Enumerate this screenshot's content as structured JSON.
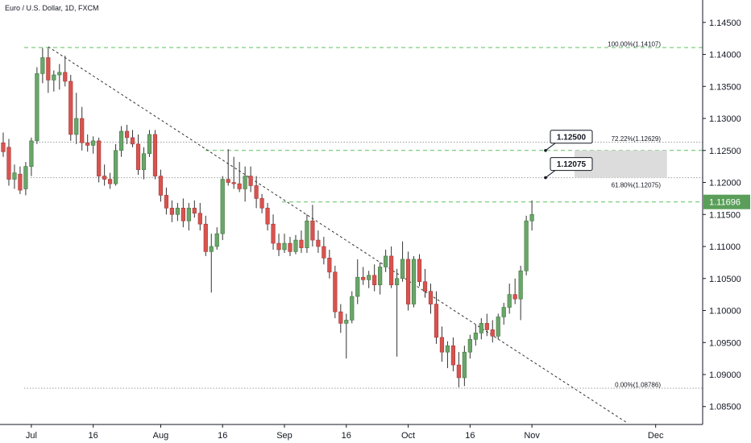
{
  "header": {
    "title": "Euro / U.S. Dollar, 1D, FXCM"
  },
  "colors": {
    "up": "#6ba56b",
    "down": "#d9534f",
    "up_border": "#3d7a3d",
    "down_border": "#a33a36",
    "fib_line": "#5fbf5f",
    "dotted_line": "#9e9e9e",
    "trendline": "#333333",
    "zone": "#dcdcdc",
    "price_badge": "#5a9e5a"
  },
  "chart_data": {
    "type": "candlestick",
    "y_range": [
      1.0822,
      1.1485
    ],
    "y_ticks": [
      "1.14500",
      "1.14000",
      "1.13500",
      "1.13000",
      "1.12500",
      "1.12000",
      "1.11500",
      "1.11000",
      "1.10500",
      "1.10000",
      "1.09500",
      "1.09000",
      "1.08500"
    ],
    "x_ticks": [
      {
        "label": "Jul",
        "index": 5
      },
      {
        "label": "16",
        "index": 16
      },
      {
        "label": "Aug",
        "index": 28
      },
      {
        "label": "16",
        "index": 39
      },
      {
        "label": "Sep",
        "index": 50
      },
      {
        "label": "16",
        "index": 61
      },
      {
        "label": "Oct",
        "index": 72
      },
      {
        "label": "16",
        "index": 83
      },
      {
        "label": "Nov",
        "index": 94
      },
      {
        "label": "Dec",
        "index": 116
      }
    ],
    "candles": [
      [
        1.1262,
        1.1278,
        1.124,
        1.1248
      ],
      [
        1.1255,
        1.1268,
        1.1195,
        1.1205
      ],
      [
        1.1205,
        1.1228,
        1.119,
        1.1215
      ],
      [
        1.1213,
        1.1225,
        1.1182,
        1.1188
      ],
      [
        1.119,
        1.1232,
        1.118,
        1.1225
      ],
      [
        1.1225,
        1.127,
        1.121,
        1.1265
      ],
      [
        1.1265,
        1.138,
        1.126,
        1.137
      ],
      [
        1.137,
        1.141,
        1.1355,
        1.1395
      ],
      [
        1.1395,
        1.141,
        1.134,
        1.136
      ],
      [
        1.136,
        1.1375,
        1.1342,
        1.1368
      ],
      [
        1.1368,
        1.1385,
        1.1345,
        1.1372
      ],
      [
        1.1372,
        1.1398,
        1.135,
        1.1358
      ],
      [
        1.1358,
        1.1368,
        1.1265,
        1.1275
      ],
      [
        1.1275,
        1.134,
        1.126,
        1.13
      ],
      [
        1.13,
        1.1318,
        1.125,
        1.1262
      ],
      [
        1.1262,
        1.1275,
        1.1248,
        1.1258
      ],
      [
        1.1258,
        1.1272,
        1.1245,
        1.1265
      ],
      [
        1.1265,
        1.127,
        1.12,
        1.121
      ],
      [
        1.121,
        1.1228,
        1.1195,
        1.1205
      ],
      [
        1.1205,
        1.1215,
        1.119,
        1.1198
      ],
      [
        1.1198,
        1.126,
        1.1195,
        1.125
      ],
      [
        1.125,
        1.1288,
        1.124,
        1.128
      ],
      [
        1.128,
        1.129,
        1.126,
        1.127
      ],
      [
        1.127,
        1.1282,
        1.1255,
        1.126
      ],
      [
        1.126,
        1.1275,
        1.1212,
        1.122
      ],
      [
        1.122,
        1.1255,
        1.1205,
        1.1245
      ],
      [
        1.1245,
        1.1282,
        1.124,
        1.1275
      ],
      [
        1.1275,
        1.1282,
        1.1205,
        1.121
      ],
      [
        1.121,
        1.122,
        1.117,
        1.118
      ],
      [
        1.118,
        1.1192,
        1.115,
        1.116
      ],
      [
        1.116,
        1.1172,
        1.1138,
        1.115
      ],
      [
        1.115,
        1.1168,
        1.114,
        1.116
      ],
      [
        1.116,
        1.1175,
        1.113,
        1.114
      ],
      [
        1.114,
        1.1168,
        1.1125,
        1.116
      ],
      [
        1.116,
        1.1172,
        1.1145,
        1.1152
      ],
      [
        1.1152,
        1.1168,
        1.1125,
        1.1135
      ],
      [
        1.1135,
        1.1148,
        1.1085,
        1.1092
      ],
      [
        1.1092,
        1.112,
        1.1028,
        1.11
      ],
      [
        1.11,
        1.113,
        1.1095,
        1.112
      ],
      [
        1.112,
        1.121,
        1.111,
        1.1205
      ],
      [
        1.1205,
        1.1252,
        1.1195,
        1.12
      ],
      [
        1.12,
        1.124,
        1.119,
        1.1198
      ],
      [
        1.1198,
        1.1232,
        1.1185,
        1.119
      ],
      [
        1.119,
        1.1225,
        1.117,
        1.121
      ],
      [
        1.121,
        1.1225,
        1.1185,
        1.1195
      ],
      [
        1.1195,
        1.121,
        1.116,
        1.1175
      ],
      [
        1.1175,
        1.1182,
        1.1152,
        1.116
      ],
      [
        1.116,
        1.1168,
        1.1125,
        1.1135
      ],
      [
        1.1135,
        1.115,
        1.1095,
        1.1105
      ],
      [
        1.1105,
        1.112,
        1.1085,
        1.1095
      ],
      [
        1.1095,
        1.112,
        1.109,
        1.1105
      ],
      [
        1.1105,
        1.1115,
        1.1085,
        1.1092
      ],
      [
        1.1092,
        1.1118,
        1.1088,
        1.111
      ],
      [
        1.111,
        1.1125,
        1.109,
        1.1098
      ],
      [
        1.1098,
        1.115,
        1.109,
        1.114
      ],
      [
        1.114,
        1.1165,
        1.11,
        1.111
      ],
      [
        1.111,
        1.1125,
        1.109,
        1.11
      ],
      [
        1.11,
        1.1115,
        1.1072,
        1.1082
      ],
      [
        1.1082,
        1.1095,
        1.105,
        1.106
      ],
      [
        1.106,
        1.107,
        1.0988,
        1.0998
      ],
      [
        1.0998,
        1.101,
        1.0965,
        1.098
      ],
      [
        1.098,
        1.0995,
        1.0925,
        1.0985
      ],
      [
        1.0985,
        1.103,
        1.098,
        1.1022
      ],
      [
        1.1022,
        1.108,
        1.101,
        1.1052
      ],
      [
        1.1052,
        1.1068,
        1.104,
        1.1048
      ],
      [
        1.1048,
        1.1062,
        1.1035,
        1.1055
      ],
      [
        1.1055,
        1.1072,
        1.103,
        1.104
      ],
      [
        1.104,
        1.1075,
        1.1025,
        1.1068
      ],
      [
        1.1068,
        1.1095,
        1.106,
        1.1085
      ],
      [
        1.1085,
        1.11,
        1.1035,
        1.104
      ],
      [
        1.104,
        1.1065,
        1.0928,
        1.105
      ],
      [
        1.105,
        1.1108,
        1.1045,
        1.108
      ],
      [
        1.108,
        1.1092,
        1.1,
        1.101
      ],
      [
        1.101,
        1.1085,
        1.1005,
        1.108
      ],
      [
        1.108,
        1.1088,
        1.1038,
        1.1045
      ],
      [
        1.1045,
        1.1065,
        1.102,
        1.103
      ],
      [
        1.103,
        1.1042,
        1.0995,
        1.101
      ],
      [
        1.101,
        1.103,
        1.0948,
        1.0958
      ],
      [
        1.0958,
        1.0975,
        1.092,
        1.0935
      ],
      [
        1.0935,
        1.0952,
        1.091,
        1.0945
      ],
      [
        1.0945,
        1.0958,
        1.0905,
        1.0915
      ],
      [
        1.0915,
        1.0935,
        1.088,
        1.0895
      ],
      [
        1.0895,
        1.0945,
        1.0882,
        1.0935
      ],
      [
        1.0935,
        1.0962,
        1.0925,
        1.0955
      ],
      [
        1.0955,
        1.0978,
        1.0945,
        1.0965
      ],
      [
        1.0965,
        1.0988,
        1.0955,
        1.098
      ],
      [
        1.098,
        1.0995,
        1.096,
        1.097
      ],
      [
        1.097,
        1.0985,
        1.095,
        1.096
      ],
      [
        1.096,
        1.0995,
        1.0955,
        1.099
      ],
      [
        1.099,
        1.1012,
        1.0978,
        1.1005
      ],
      [
        1.1005,
        1.1042,
        1.0995,
        1.1025
      ],
      [
        1.1025,
        1.105,
        1.101,
        1.1018
      ],
      [
        1.1018,
        1.107,
        1.0985,
        1.1062
      ],
      [
        1.1062,
        1.1148,
        1.1055,
        1.114
      ],
      [
        1.114,
        1.1172,
        1.1125,
        1.115
      ]
    ],
    "levels": [
      {
        "label": "100.00%(1.14107)",
        "value": 1.14107,
        "style": "dashed"
      },
      {
        "label": "72.22%(1.12629)",
        "value": 1.12629,
        "style": "dotted"
      },
      {
        "label": "61.80%(1.12075)",
        "value": 1.12075,
        "style": "dotted"
      },
      {
        "label": "0.00%(1.08786)",
        "value": 1.08786,
        "style": "dotted"
      }
    ],
    "resistance_line": 1.125,
    "current_price_line": 1.11696,
    "zone": {
      "top": 1.125,
      "bottom": 1.12075,
      "start_index": 99,
      "end_index": 114
    },
    "callouts": [
      {
        "label": "1.12500",
        "value": 1.125
      },
      {
        "label": "1.12075",
        "value": 1.12075
      }
    ],
    "current_price": "1.11696",
    "trendline": {
      "start_index": 8,
      "start_value": 1.1412,
      "end_index": 118,
      "end_value": 1.0825
    }
  }
}
